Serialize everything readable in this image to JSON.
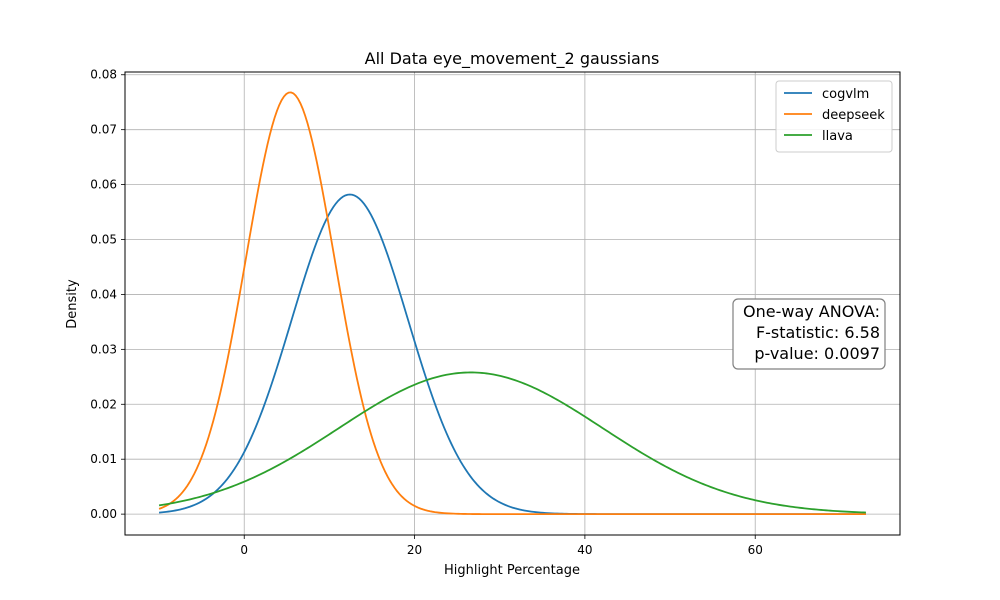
{
  "chart_data": {
    "type": "line",
    "title": "All Data eye_movement_2 gaussians",
    "xlabel": "Highlight Percentage",
    "ylabel": "Density",
    "xlim": [
      -14,
      77
    ],
    "ylim": [
      -0.0038,
      0.0805
    ],
    "xticks": [
      0,
      20,
      40,
      60
    ],
    "yticks": [
      0.0,
      0.01,
      0.02,
      0.03,
      0.04,
      0.05,
      0.06,
      0.07,
      0.08
    ],
    "ytick_labels": [
      "0.00",
      "0.01",
      "0.02",
      "0.03",
      "0.04",
      "0.05",
      "0.06",
      "0.07",
      "0.08"
    ],
    "grid": true,
    "legend_position": "top-right",
    "x_range": [
      -10,
      73
    ],
    "series": [
      {
        "name": "cogvlm",
        "color": "#1f77b4",
        "mean": 12.4,
        "std": 6.85,
        "peak": 0.0582
      },
      {
        "name": "deepseek",
        "color": "#ff7f0e",
        "mean": 5.4,
        "std": 5.2,
        "peak": 0.0768
      },
      {
        "name": "llava",
        "color": "#2ca02c",
        "mean": 26.6,
        "std": 15.5,
        "peak": 0.0258
      }
    ],
    "annotation": {
      "lines": [
        "One-way ANOVA:",
        "F-statistic: 6.58",
        "p-value: 0.0097"
      ],
      "position": "right"
    }
  }
}
